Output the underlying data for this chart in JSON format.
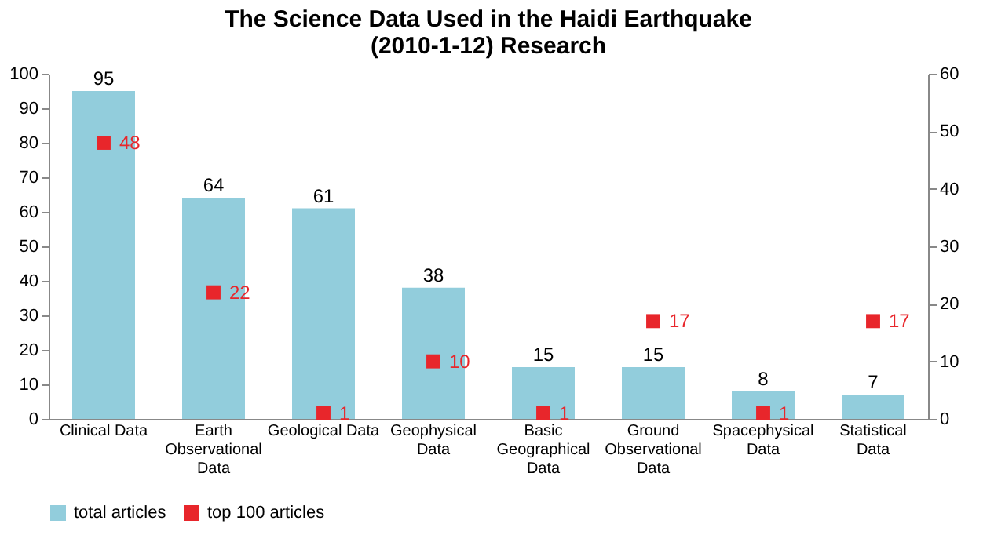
{
  "chart_data": {
    "type": "bar",
    "title": "The Science Data Used in the Haidi Earthquake (2010-1-12) Research",
    "categories": [
      "Clinical Data",
      "Earth Observational Data",
      "Geological Data",
      "Geophysical Data",
      "Basic Geographical Data",
      "Ground Observational Data",
      "Spacephysical Data",
      "Statistical Data"
    ],
    "series": [
      {
        "name": "total articles",
        "color": "#92cddc",
        "values": [
          95,
          64,
          61,
          38,
          15,
          15,
          8,
          7
        ]
      },
      {
        "name": "top 100 articles",
        "type": "scatter",
        "axis": "y2",
        "color": "#e8262b",
        "values": [
          48,
          22,
          1,
          10,
          1,
          17,
          1,
          17
        ]
      }
    ],
    "ylim": [
      0,
      100
    ],
    "yticks": [
      0,
      10,
      20,
      30,
      40,
      50,
      60,
      70,
      80,
      90,
      100
    ],
    "y2lim": [
      0,
      60
    ],
    "y2ticks": [
      0,
      10,
      20,
      30,
      40,
      50,
      60
    ],
    "data_labels": true,
    "legend": "bottom",
    "grid": false,
    "marker": "square"
  }
}
